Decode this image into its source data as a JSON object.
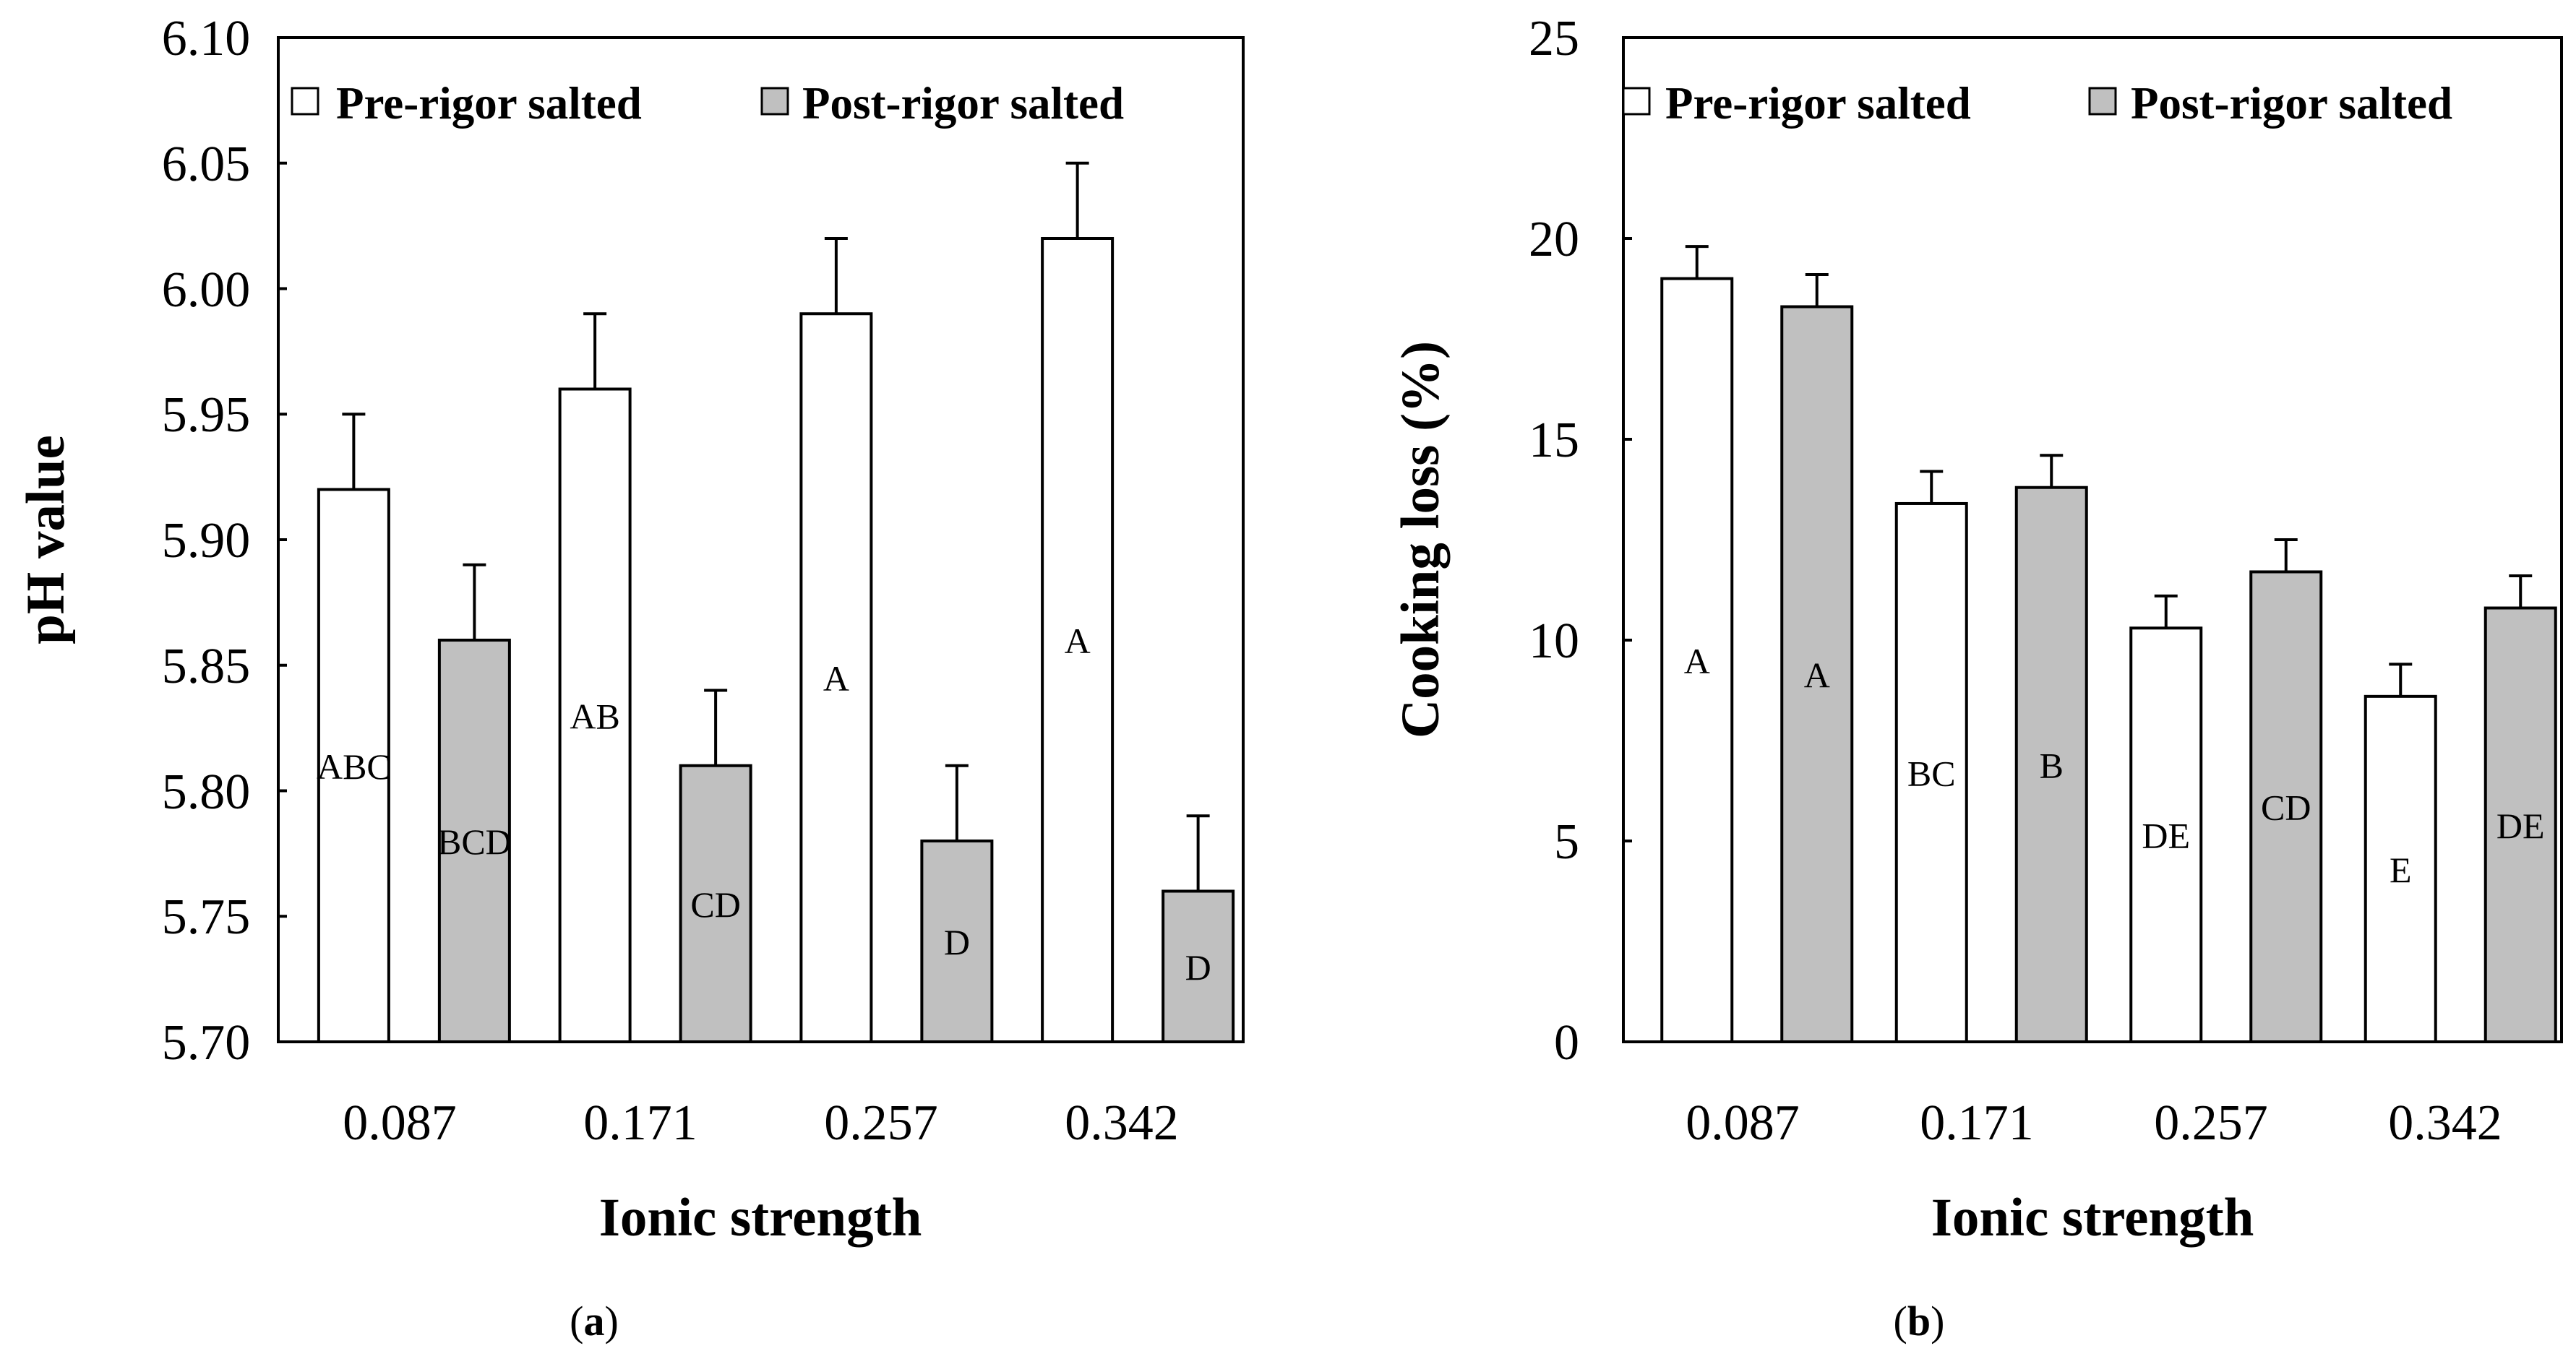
{
  "chart_data": [
    {
      "type": "bar",
      "panel_label": "a",
      "xlabel": "Ionic strength",
      "ylabel": "pH value",
      "categories": [
        "0.087",
        "0.171",
        "0.257",
        "0.342"
      ],
      "ylim": [
        5.7,
        6.1
      ],
      "yticks": [
        "5.70",
        "5.75",
        "5.80",
        "5.85",
        "5.90",
        "5.95",
        "6.00",
        "6.05",
        "6.10"
      ],
      "grid": false,
      "legend_position": "top",
      "series": [
        {
          "name": "Pre-rigor salted",
          "color": "#ffffff",
          "values": [
            5.92,
            5.96,
            5.99,
            6.02
          ],
          "errors": [
            0.03,
            0.03,
            0.03,
            0.03
          ],
          "labels": [
            "ABC",
            "AB",
            "A",
            "A"
          ]
        },
        {
          "name": "Post-rigor salted",
          "color": "#c0c0c0",
          "values": [
            5.86,
            5.81,
            5.78,
            5.76
          ],
          "errors": [
            0.03,
            0.03,
            0.03,
            0.03
          ],
          "labels": [
            "BCD",
            "CD",
            "D",
            "D"
          ]
        }
      ]
    },
    {
      "type": "bar",
      "panel_label": "b",
      "xlabel": "Ionic strength",
      "ylabel": "Cooking loss (%)",
      "categories": [
        "0.087",
        "0.171",
        "0.257",
        "0.342"
      ],
      "ylim": [
        0,
        25
      ],
      "yticks": [
        "0",
        "5",
        "10",
        "15",
        "20",
        "25"
      ],
      "grid": false,
      "legend_position": "top",
      "series": [
        {
          "name": "Pre-rigor salted",
          "color": "#ffffff",
          "values": [
            19.0,
            13.4,
            10.3,
            8.6
          ],
          "errors": [
            0.8,
            0.8,
            0.8,
            0.8
          ],
          "labels": [
            "A",
            "BC",
            "DE",
            "E"
          ]
        },
        {
          "name": "Post-rigor salted",
          "color": "#c0c0c0",
          "values": [
            18.3,
            13.8,
            11.7,
            10.8
          ],
          "errors": [
            0.8,
            0.8,
            0.8,
            0.8
          ],
          "labels": [
            "A",
            "B",
            "CD",
            "DE"
          ]
        }
      ]
    }
  ]
}
